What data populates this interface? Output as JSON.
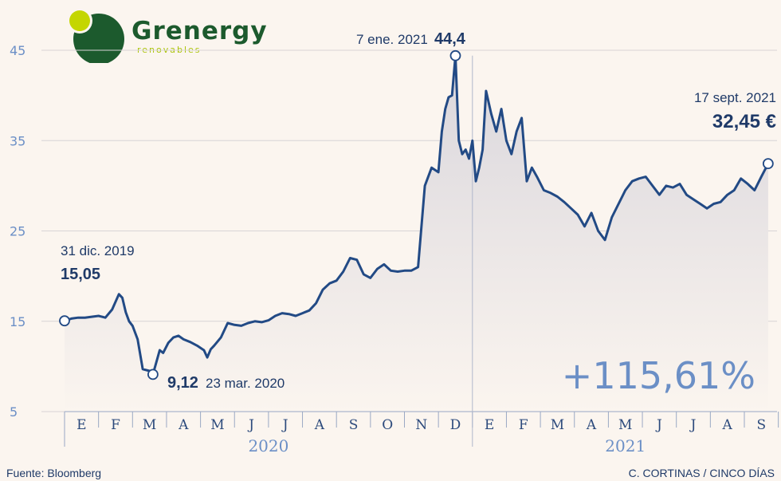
{
  "logo": {
    "name": "Grenergy",
    "tagline": "renovables"
  },
  "source": "Fuente: Bloomberg",
  "credit": "C. CORTINAS / CINCO DÍAS",
  "chart_data": {
    "type": "area",
    "ylim": [
      5,
      45
    ],
    "yticks": [
      5,
      15,
      25,
      35,
      45
    ],
    "grid": "horizontal",
    "months": [
      "E",
      "F",
      "M",
      "A",
      "M",
      "J",
      "J",
      "A",
      "S",
      "O",
      "N",
      "D",
      "E",
      "F",
      "M",
      "A",
      "M",
      "J",
      "J",
      "A",
      "S"
    ],
    "years": [
      {
        "label": "2020",
        "from_month": 0,
        "to_month": 11
      },
      {
        "label": "2021",
        "from_month": 12,
        "to_month": 20
      }
    ],
    "series": [
      {
        "x_month": [
          0,
          0.2,
          0.4,
          0.6,
          0.8,
          1.0,
          1.2,
          1.4,
          1.6,
          1.7,
          1.8,
          1.9,
          2.0,
          2.15,
          2.3,
          2.5,
          2.6,
          2.8,
          2.9,
          3.05,
          3.2,
          3.35,
          3.5,
          3.7,
          3.9,
          4.1,
          4.2,
          4.3,
          4.4,
          4.6,
          4.8,
          5.0,
          5.2,
          5.4,
          5.6,
          5.8,
          6.0,
          6.2,
          6.4,
          6.6,
          6.8,
          7.0,
          7.2,
          7.4,
          7.6,
          7.8,
          8.0,
          8.2,
          8.4,
          8.6,
          8.8,
          9.0,
          9.2,
          9.4,
          9.6,
          9.8,
          10.0,
          10.2,
          10.4,
          10.6,
          10.8,
          11.0,
          11.1,
          11.2,
          11.3,
          11.4,
          11.5,
          11.6,
          11.7,
          11.8,
          11.9,
          12.0,
          12.1,
          12.2,
          12.3,
          12.4,
          12.55,
          12.7,
          12.85,
          13.0,
          13.15,
          13.3,
          13.45,
          13.6,
          13.75,
          13.9,
          14.1,
          14.3,
          14.5,
          14.7,
          14.9,
          15.1,
          15.3,
          15.5,
          15.7,
          15.9,
          16.1,
          16.3,
          16.5,
          16.7,
          16.9,
          17.1,
          17.3,
          17.5,
          17.7,
          17.9,
          18.1,
          18.3,
          18.5,
          18.7,
          18.9,
          19.1,
          19.3,
          19.5,
          19.7,
          19.9,
          20.1,
          20.3,
          20.5,
          20.7
        ],
        "values": [
          15.05,
          15.3,
          15.4,
          15.4,
          15.5,
          15.6,
          15.4,
          16.3,
          18.0,
          17.6,
          16.0,
          15.0,
          14.5,
          13.0,
          9.7,
          9.5,
          9.12,
          11.8,
          11.5,
          12.6,
          13.2,
          13.4,
          13.0,
          12.7,
          12.3,
          11.8,
          11.0,
          11.9,
          12.3,
          13.2,
          14.8,
          14.6,
          14.5,
          14.8,
          15.0,
          14.9,
          15.1,
          15.6,
          15.9,
          15.8,
          15.6,
          15.9,
          16.2,
          17.0,
          18.5,
          19.2,
          19.5,
          20.5,
          22.0,
          21.8,
          20.2,
          19.8,
          20.8,
          21.3,
          20.6,
          20.5,
          20.6,
          20.6,
          21.0,
          30.0,
          32.0,
          31.5,
          36.0,
          38.5,
          39.8,
          40.0,
          44.4,
          35.0,
          33.5,
          34.0,
          33.0,
          35.0,
          30.5,
          32.0,
          34.0,
          40.5,
          38.0,
          36.0,
          38.5,
          35.0,
          33.5,
          36.0,
          37.5,
          30.5,
          32.0,
          31.0,
          29.5,
          29.2,
          28.8,
          28.2,
          27.5,
          26.8,
          25.5,
          27.0,
          25.0,
          24.0,
          26.5,
          28.0,
          29.5,
          30.5,
          30.8,
          31.0,
          30.0,
          29.0,
          30.0,
          29.8,
          30.2,
          29.0,
          28.5,
          28.0,
          27.5,
          28.0,
          28.2,
          29.0,
          29.5,
          30.8,
          30.2,
          29.5,
          31.0,
          32.45
        ]
      }
    ],
    "annotations": [
      {
        "date": "31 dic. 2019",
        "value_label": "15,05",
        "month_x": 0,
        "y": 15.05
      },
      {
        "date": "23 mar. 2020",
        "value_label": "9,12",
        "month_x": 2.6,
        "y": 9.12
      },
      {
        "date": "7 ene. 2021",
        "value_label": "44,4",
        "month_x": 11.5,
        "y": 44.4
      },
      {
        "date": "17 sept. 2021",
        "value_label": "32,45 €",
        "month_x": 20.7,
        "y": 32.45
      }
    ],
    "change_label": "+115,61%"
  },
  "colors": {
    "background": "#fbf5ef",
    "line": "#224a85",
    "axis_labels": "#6b8fc6",
    "annotation_text": "#1f3a68",
    "logo_green": "#1c5a2d",
    "logo_lime": "#a9c300"
  }
}
